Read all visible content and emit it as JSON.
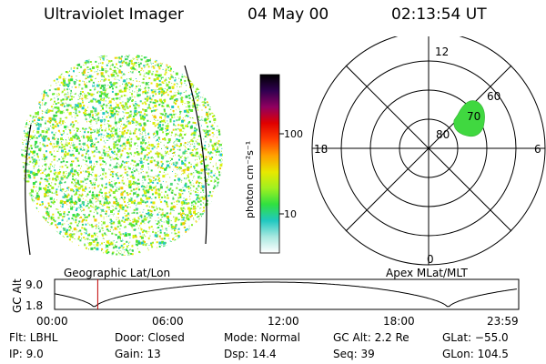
{
  "header": {
    "title": "Ultraviolet Imager",
    "date": "04 May 00",
    "time": "02:13:54 UT"
  },
  "colorbar": {
    "unit_label": "photon cm⁻²s⁻¹",
    "tick_100": "100",
    "tick_10": "10"
  },
  "polar": {
    "mlt_12": "12",
    "mlt_18": "18",
    "mlt_6": "6",
    "mlt_0": "0",
    "lat_60": "60",
    "lat_70": "70",
    "lat_80": "80"
  },
  "labels": {
    "geographic": "Geographic Lat/Lon",
    "apex": "Apex MLat/MLT"
  },
  "orbit": {
    "axis_label": "GC Alt",
    "y_top": "9.0",
    "y_bottom": "1.8",
    "x_ticks": [
      "00:00",
      "06:00",
      "12:00",
      "18:00",
      "23:59"
    ],
    "current_time_hours": 2.23
  },
  "info": {
    "flt": "Flt: LBHL",
    "ip": "IP:  9.0",
    "door": "Door: Closed",
    "gain": "Gain: 13",
    "mode": "Mode: Normal",
    "dsp": "Dsp:   14.4",
    "gcalt": "GC Alt: 2.2 Re",
    "seq": "Seq: 39",
    "glat": "GLat: −55.0",
    "glon": "GLon: 104.5"
  },
  "colors": {
    "colorbar_stops": [
      "#ffffff",
      "#a8e8e0",
      "#20c8c0",
      "#30e040",
      "#a0f020",
      "#e8e800",
      "#ffa000",
      "#ff4000",
      "#e00000",
      "#900060",
      "#300050",
      "#000000"
    ],
    "cursor": "#c00000"
  }
}
